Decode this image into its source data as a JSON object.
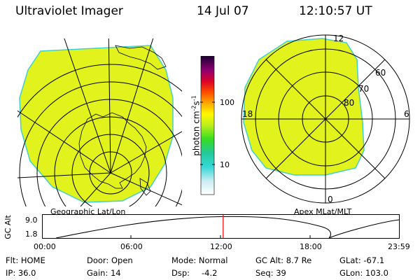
{
  "header": {
    "instrument": "Ultraviolet Imager",
    "date": "14 Jul 07",
    "time": "12:10:57 UT"
  },
  "colors": {
    "image_fill": "#e2f21c",
    "image_edge": "#3fd0d0",
    "grid": "#000000",
    "time_marker": "#ff0000"
  },
  "left_panel": {
    "label": "Geographic Lat/Lon"
  },
  "right_panel": {
    "label": "Apex MLat/MLT",
    "mlt_labels": {
      "top": "12",
      "left": "18",
      "right": "6",
      "bottom": "0"
    },
    "lat_labels": [
      "60",
      "70",
      "80"
    ]
  },
  "colorbar": {
    "unit_label": "photon cm",
    "unit_sup1": "-2",
    "unit_mid": "s",
    "unit_sup2": "-1",
    "ticks": [
      "100",
      "10"
    ]
  },
  "altitude_plot": {
    "ylabel": "GC Alt",
    "yticks": [
      "9.0",
      "1.8"
    ],
    "xticks": [
      "00:00",
      "06:00",
      "12:00",
      "18:00",
      "23:59"
    ],
    "current_time_hours": 12.18
  },
  "info": {
    "flt": "Flt: HOME",
    "door": "Door: Open",
    "mode": "Mode: Normal",
    "gc_alt": "GC Alt: 8.7 Re",
    "glat": "GLat: -67.1",
    "ip": "IP: 36.0",
    "gain": "Gain: 14",
    "dsp_label": "Dsp:",
    "dsp_value": "-4.2",
    "seq": "Seq: 39",
    "glon": "GLon: 103.0"
  }
}
